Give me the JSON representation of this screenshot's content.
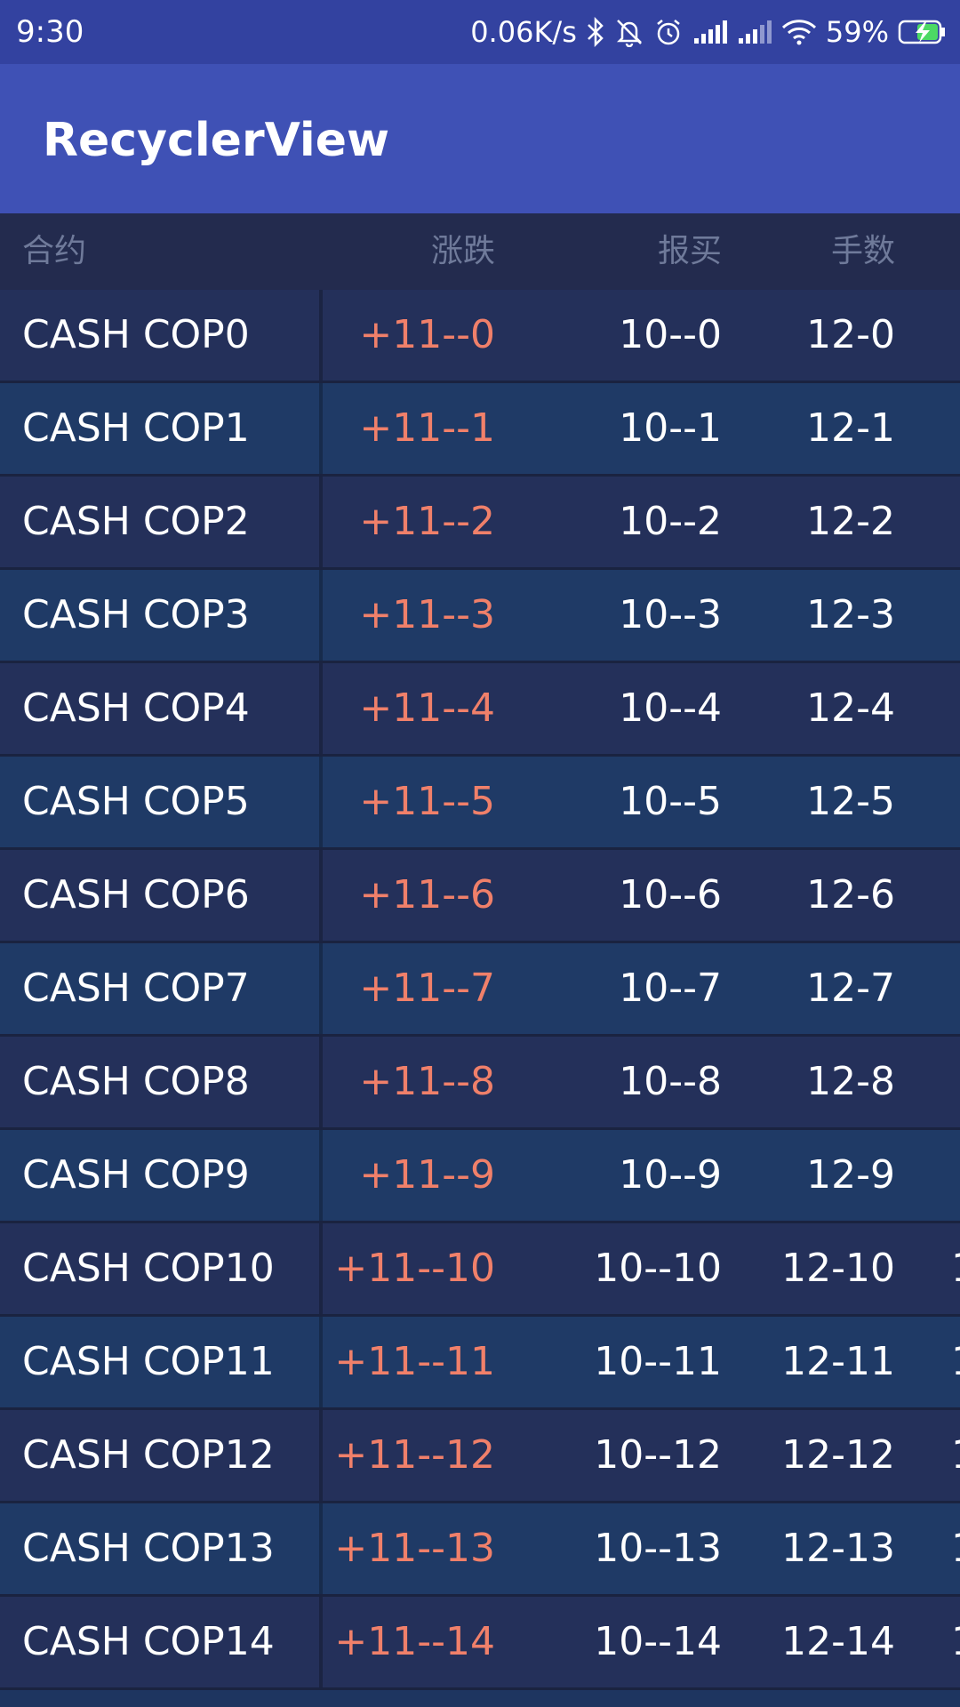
{
  "status_bar": {
    "time": "9:30",
    "network_speed": "0.06K/s",
    "battery_percent": "59%",
    "icons": [
      "bluetooth-icon",
      "mute-icon",
      "alarm-icon",
      "signal-icon",
      "signal-icon",
      "wifi-icon",
      "battery-charging-icon"
    ]
  },
  "app_bar": {
    "title": "RecyclerView"
  },
  "table": {
    "headers": {
      "name": "合约",
      "change": "涨跌",
      "bid": "报买",
      "volume": "手数"
    },
    "rows": [
      {
        "name": "CASH COP0",
        "change": "+11--0",
        "bid": "10--0",
        "volume": "12-0",
        "extra": ""
      },
      {
        "name": "CASH COP1",
        "change": "+11--1",
        "bid": "10--1",
        "volume": "12-1",
        "extra": ""
      },
      {
        "name": "CASH COP2",
        "change": "+11--2",
        "bid": "10--2",
        "volume": "12-2",
        "extra": ""
      },
      {
        "name": "CASH COP3",
        "change": "+11--3",
        "bid": "10--3",
        "volume": "12-3",
        "extra": ""
      },
      {
        "name": "CASH COP4",
        "change": "+11--4",
        "bid": "10--4",
        "volume": "12-4",
        "extra": ""
      },
      {
        "name": "CASH COP5",
        "change": "+11--5",
        "bid": "10--5",
        "volume": "12-5",
        "extra": ""
      },
      {
        "name": "CASH COP6",
        "change": "+11--6",
        "bid": "10--6",
        "volume": "12-6",
        "extra": ""
      },
      {
        "name": "CASH COP7",
        "change": "+11--7",
        "bid": "10--7",
        "volume": "12-7",
        "extra": ""
      },
      {
        "name": "CASH COP8",
        "change": "+11--8",
        "bid": "10--8",
        "volume": "12-8",
        "extra": ""
      },
      {
        "name": "CASH COP9",
        "change": "+11--9",
        "bid": "10--9",
        "volume": "12-9",
        "extra": ""
      },
      {
        "name": "CASH COP10",
        "change": "+11--10",
        "bid": "10--10",
        "volume": "12-10",
        "extra": "1"
      },
      {
        "name": "CASH COP11",
        "change": "+11--11",
        "bid": "10--11",
        "volume": "12-11",
        "extra": "1"
      },
      {
        "name": "CASH COP12",
        "change": "+11--12",
        "bid": "10--12",
        "volume": "12-12",
        "extra": "1"
      },
      {
        "name": "CASH COP13",
        "change": "+11--13",
        "bid": "10--13",
        "volume": "12-13",
        "extra": "1"
      },
      {
        "name": "CASH COP14",
        "change": "+11--14",
        "bid": "10--14",
        "volume": "12-14",
        "extra": "1"
      }
    ]
  },
  "colors": {
    "status_bar": "#3342a0",
    "app_bar": "#3f51b5",
    "header_bg": "#232b4e",
    "row_odd": "#1f3a66",
    "row_even": "#24305a",
    "change_text": "#f0806a",
    "header_text": "#6f7a9a"
  }
}
